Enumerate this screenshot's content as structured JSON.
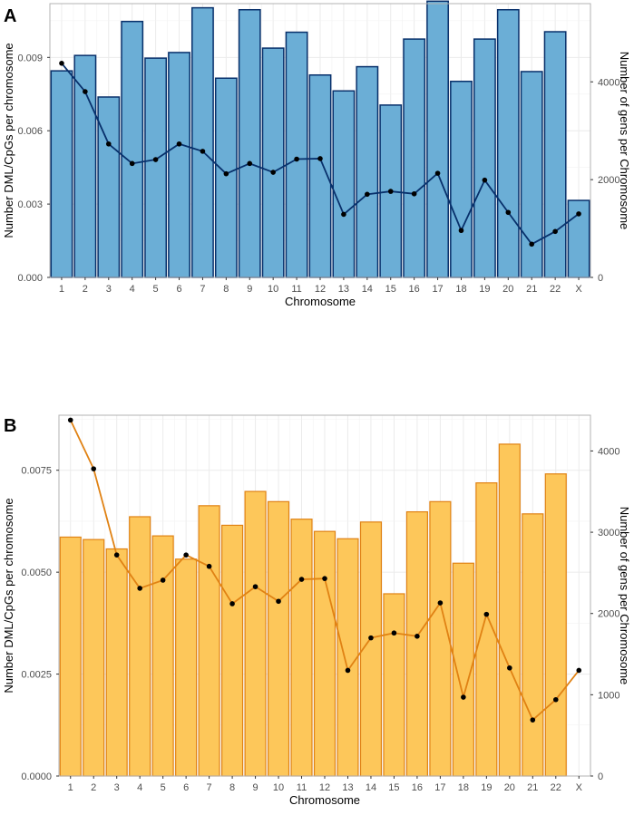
{
  "figure": {
    "panels": [
      "A",
      "B"
    ]
  },
  "chart_data": [
    {
      "panel_label": "A",
      "type": "bar+line",
      "title": "",
      "xlabel": "Chromosome",
      "ylabel_left": "Number DML/CpGs per chromosome",
      "ylabel_right": "Number of gens per Chromosome",
      "categories": [
        "1",
        "2",
        "3",
        "4",
        "5",
        "6",
        "7",
        "8",
        "9",
        "10",
        "11",
        "12",
        "13",
        "14",
        "15",
        "16",
        "17",
        "18",
        "19",
        "20",
        "21",
        "22",
        "X"
      ],
      "ylim_left": [
        0,
        0.0112
      ],
      "left_ticks": [
        0,
        0.003,
        0.006,
        0.009
      ],
      "left_tick_labels": [
        "0.000",
        "0.003",
        "0.006",
        "0.009"
      ],
      "ylim_right": [
        0,
        5600
      ],
      "right_ticks": [
        0,
        2000,
        4000
      ],
      "right_tick_labels": [
        "0",
        "2000",
        "4000"
      ],
      "series": [
        {
          "name": "DML/CpGs per chromosome",
          "kind": "bar",
          "axis": "left",
          "values": [
            0.00845,
            0.00908,
            0.00738,
            0.01047,
            0.00897,
            0.0092,
            0.01103,
            0.00815,
            0.01095,
            0.00938,
            0.01003,
            0.00828,
            0.00763,
            0.00862,
            0.00705,
            0.00975,
            0.0113,
            0.00802,
            0.00975,
            0.01095,
            0.00842,
            0.01005,
            0.00315
          ],
          "fill": "#6baed6",
          "stroke": "#08306b"
        },
        {
          "name": "Genes per chromosome",
          "kind": "line",
          "axis": "right",
          "values": [
            4380,
            3800,
            2730,
            2330,
            2410,
            2730,
            2580,
            2120,
            2330,
            2150,
            2420,
            2430,
            1290,
            1700,
            1760,
            1710,
            2130,
            960,
            1990,
            1330,
            680,
            940,
            1300
          ],
          "line_color": "#08306b",
          "point_color": "#000000"
        }
      ]
    },
    {
      "panel_label": "B",
      "type": "bar+line",
      "title": "",
      "xlabel": "Chromosome",
      "ylabel_left": "Number DML/CpGs per chromosome",
      "ylabel_right": "Number of gens per Chromosome",
      "categories": [
        "1",
        "2",
        "3",
        "4",
        "5",
        "6",
        "7",
        "8",
        "9",
        "10",
        "11",
        "12",
        "13",
        "14",
        "15",
        "16",
        "17",
        "18",
        "19",
        "20",
        "21",
        "22",
        "X"
      ],
      "ylim_left": [
        0,
        0.00885
      ],
      "left_ticks": [
        0,
        0.0025,
        0.005,
        0.0075
      ],
      "left_tick_labels": [
        "0.0000",
        "0.0025",
        "0.0050",
        "0.0075"
      ],
      "ylim_right": [
        0,
        4440
      ],
      "right_ticks": [
        0,
        1000,
        2000,
        3000,
        4000
      ],
      "right_tick_labels": [
        "0",
        "1000",
        "2000",
        "3000",
        "4000"
      ],
      "series": [
        {
          "name": "DML/CpGs per chromosome",
          "kind": "bar",
          "axis": "left",
          "values": [
            0.00586,
            0.0058,
            0.00557,
            0.00636,
            0.00589,
            0.00532,
            0.00663,
            0.00615,
            0.00698,
            0.00673,
            0.0063,
            0.006,
            0.00582,
            0.00623,
            0.00447,
            0.00648,
            0.00673,
            0.00522,
            0.00719,
            0.00814,
            0.00643,
            0.00741,
            0.0
          ],
          "fill": "#fdc75a",
          "stroke": "#e08214"
        },
        {
          "name": "Genes per chromosome",
          "kind": "line",
          "axis": "right",
          "values": [
            4380,
            3780,
            2720,
            2310,
            2410,
            2720,
            2580,
            2120,
            2330,
            2150,
            2420,
            2430,
            1300,
            1700,
            1760,
            1720,
            2130,
            970,
            1990,
            1330,
            690,
            940,
            1300
          ],
          "line_color": "#e08214",
          "point_color": "#000000"
        }
      ]
    }
  ]
}
